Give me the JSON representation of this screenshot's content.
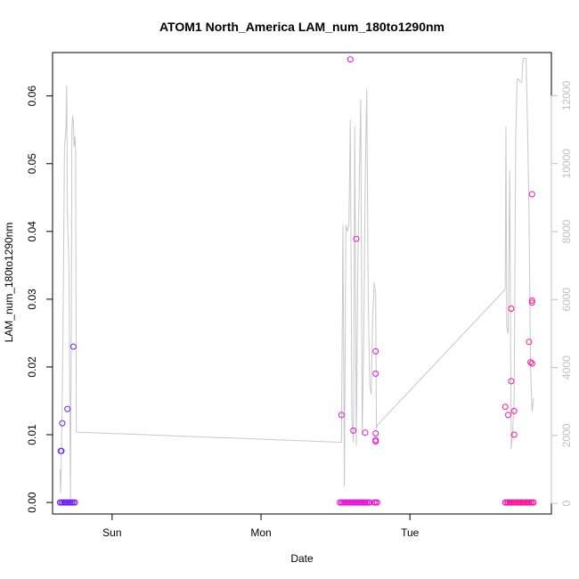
{
  "chart_data": {
    "type": "scatter",
    "title": "ATOM1 North_America LAM_num_180to1290nm",
    "xlabel": "Date",
    "ylabel": "LAM_num_180to1290nm",
    "x_unit": "days",
    "xlim": [
      -0.4,
      2.95
    ],
    "ylim": [
      -0.0017,
      0.0664
    ],
    "y2lim": [
      -310,
      13270
    ],
    "x_ticks": [
      {
        "v": 0,
        "label": "Sun"
      },
      {
        "v": 1,
        "label": "Mon"
      },
      {
        "v": 2,
        "label": "Tue"
      }
    ],
    "y_ticks": [
      {
        "v": 0,
        "label": "0.00"
      },
      {
        "v": 0.01,
        "label": "0.01"
      },
      {
        "v": 0.02,
        "label": "0.02"
      },
      {
        "v": 0.03,
        "label": "0.03"
      },
      {
        "v": 0.04,
        "label": "0.04"
      },
      {
        "v": 0.05,
        "label": "0.05"
      },
      {
        "v": 0.06,
        "label": "0.06"
      }
    ],
    "y2_ticks": [
      {
        "v": 0,
        "label": "0"
      },
      {
        "v": 2000,
        "label": "2000"
      },
      {
        "v": 4000,
        "label": "4000"
      },
      {
        "v": 6000,
        "label": "6000"
      },
      {
        "v": 8000,
        "label": "8000"
      },
      {
        "v": 10000,
        "label": "10000"
      },
      {
        "v": 12000,
        "label": "12000"
      }
    ],
    "colors": {
      "series_start": "#6a1fff",
      "series_mid": "#e010f0",
      "series_end": "#ff1493",
      "secondary_line": "#c8c8c8",
      "axis": "#000000",
      "secondary_axis": "#c0c0c0"
    },
    "series": [
      {
        "axis": "left",
        "points": [
          [
            -0.345,
            0.0076
          ],
          [
            -0.34,
            0.0076
          ],
          [
            -0.335,
            0.0117
          ],
          [
            -0.3,
            0.0138
          ],
          [
            -0.26,
            0.023
          ],
          [
            -0.35,
            0
          ],
          [
            -0.34,
            0
          ],
          [
            -0.33,
            0
          ],
          [
            -0.32,
            0
          ],
          [
            -0.31,
            0
          ],
          [
            -0.3,
            0
          ],
          [
            -0.29,
            0
          ],
          [
            -0.28,
            0
          ],
          [
            -0.27,
            0
          ],
          [
            -0.26,
            0
          ],
          [
            -0.25,
            0
          ],
          [
            1.54,
            0.0129
          ],
          [
            1.6,
            0.0654
          ],
          [
            1.62,
            0.0106
          ],
          [
            1.64,
            0.0389
          ],
          [
            1.7,
            0.0103
          ],
          [
            1.77,
            0.0223
          ],
          [
            1.77,
            0.019
          ],
          [
            1.77,
            0.0102
          ],
          [
            1.77,
            0.0092
          ],
          [
            1.77,
            0.009
          ],
          [
            1.53,
            0
          ],
          [
            1.54,
            0
          ],
          [
            1.55,
            0
          ],
          [
            1.56,
            0
          ],
          [
            1.57,
            0
          ],
          [
            1.58,
            0
          ],
          [
            1.59,
            0
          ],
          [
            1.6,
            0
          ],
          [
            1.61,
            0
          ],
          [
            1.62,
            0
          ],
          [
            1.63,
            0
          ],
          [
            1.64,
            0
          ],
          [
            1.65,
            0
          ],
          [
            1.66,
            0
          ],
          [
            1.67,
            0
          ],
          [
            1.68,
            0
          ],
          [
            1.69,
            0
          ],
          [
            1.7,
            0
          ],
          [
            1.71,
            0
          ],
          [
            1.72,
            0
          ],
          [
            1.73,
            0
          ],
          [
            1.76,
            0
          ],
          [
            1.77,
            0
          ],
          [
            1.78,
            0
          ],
          [
            2.64,
            0.0141
          ],
          [
            2.66,
            0.0129
          ],
          [
            2.68,
            0.0286
          ],
          [
            2.68,
            0.0179
          ],
          [
            2.7,
            0.0135
          ],
          [
            2.7,
            0.01
          ],
          [
            2.8,
            0.0237
          ],
          [
            2.81,
            0.0207
          ],
          [
            2.82,
            0.0455
          ],
          [
            2.82,
            0.0298
          ],
          [
            2.82,
            0.0295
          ],
          [
            2.82,
            0.0205
          ],
          [
            2.64,
            0
          ],
          [
            2.65,
            0
          ],
          [
            2.66,
            0
          ],
          [
            2.67,
            0
          ],
          [
            2.68,
            0
          ],
          [
            2.69,
            0
          ],
          [
            2.7,
            0
          ],
          [
            2.71,
            0
          ],
          [
            2.72,
            0
          ],
          [
            2.73,
            0
          ],
          [
            2.74,
            0
          ],
          [
            2.75,
            0
          ],
          [
            2.76,
            0
          ],
          [
            2.77,
            0
          ],
          [
            2.78,
            0
          ],
          [
            2.79,
            0
          ],
          [
            2.8,
            0
          ],
          [
            2.81,
            0
          ],
          [
            2.82,
            0
          ],
          [
            2.83,
            0
          ]
        ]
      },
      {
        "axis": "right",
        "points": [
          [
            -0.35,
            1000
          ],
          [
            -0.345,
            300
          ],
          [
            -0.34,
            1500
          ],
          [
            -0.33,
            5000
          ],
          [
            -0.32,
            10500
          ],
          [
            -0.31,
            11000
          ],
          [
            -0.305,
            12300
          ],
          [
            -0.3,
            8500
          ],
          [
            -0.29,
            7000
          ],
          [
            -0.28,
            100
          ],
          [
            -0.275,
            4000
          ],
          [
            -0.27,
            11000
          ],
          [
            -0.265,
            11400
          ],
          [
            -0.26,
            11200
          ],
          [
            -0.255,
            10500
          ],
          [
            -0.25,
            10800
          ],
          [
            -0.245,
            10400
          ],
          [
            -0.24,
            2100
          ],
          [
            1.54,
            1800
          ],
          [
            1.55,
            8200
          ],
          [
            1.56,
            500
          ],
          [
            1.57,
            8200
          ],
          [
            1.58,
            8000
          ],
          [
            1.59,
            8200
          ],
          [
            1.6,
            11300
          ],
          [
            1.61,
            2500
          ],
          [
            1.62,
            1800
          ],
          [
            1.63,
            11100
          ],
          [
            1.64,
            1700
          ],
          [
            1.65,
            7000
          ],
          [
            1.67,
            11900
          ],
          [
            1.68,
            2000
          ],
          [
            1.69,
            5000
          ],
          [
            1.7,
            9500
          ],
          [
            1.71,
            12200
          ],
          [
            1.72,
            6000
          ],
          [
            1.73,
            3500
          ],
          [
            1.74,
            3200
          ],
          [
            1.75,
            5500
          ],
          [
            1.76,
            6500
          ],
          [
            1.77,
            6200
          ],
          [
            1.775,
            2200
          ],
          [
            1.78,
            2300
          ],
          [
            2.64,
            6300
          ],
          [
            2.645,
            11100
          ],
          [
            2.65,
            5200
          ],
          [
            2.66,
            5000
          ],
          [
            2.67,
            9800
          ],
          [
            2.68,
            1600
          ],
          [
            2.69,
            2100
          ],
          [
            2.7,
            3000
          ],
          [
            2.71,
            10700
          ],
          [
            2.72,
            12500
          ],
          [
            2.73,
            12500
          ],
          [
            2.74,
            12400
          ],
          [
            2.75,
            12400
          ],
          [
            2.76,
            13100
          ],
          [
            2.77,
            13100
          ],
          [
            2.78,
            13100
          ],
          [
            2.79,
            11000
          ],
          [
            2.8,
            8500
          ],
          [
            2.81,
            4000
          ],
          [
            2.82,
            2700
          ],
          [
            2.83,
            3100
          ]
        ]
      }
    ]
  }
}
